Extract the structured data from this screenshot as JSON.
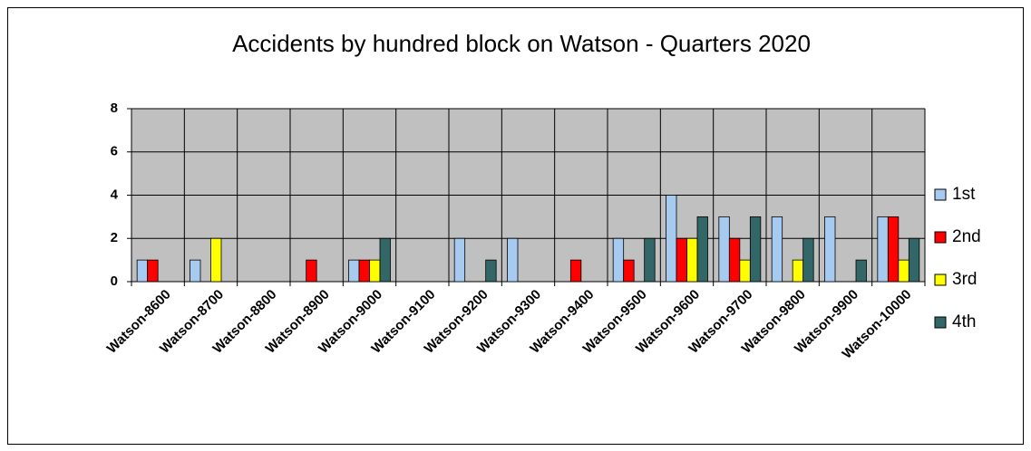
{
  "chart_data": {
    "type": "bar",
    "title": "Accidents by hundred block on Watson - Quarters 2020",
    "categories": [
      "Watson-8600",
      "Watson-8700",
      "Watson-8800",
      "Watson-8900",
      "Watson-9000",
      "Watson-9100",
      "Watson-9200",
      "Watson-9300",
      "Watson-9400",
      "Watson-9500",
      "Watson-9600",
      "Watson-9700",
      "Watson-9800",
      "Watson-9900",
      "Watson-10000"
    ],
    "series": [
      {
        "name": "1st",
        "color": "#a6caf0",
        "values": [
          1,
          1,
          0,
          0,
          1,
          0,
          2,
          2,
          0,
          2,
          4,
          3,
          3,
          3,
          3
        ]
      },
      {
        "name": "2nd",
        "color": "#ff0000",
        "values": [
          1,
          0,
          0,
          1,
          1,
          0,
          0,
          0,
          1,
          1,
          2,
          2,
          0,
          0,
          3
        ]
      },
      {
        "name": "3rd",
        "color": "#ffff00",
        "values": [
          0,
          2,
          0,
          0,
          1,
          0,
          0,
          0,
          0,
          0,
          2,
          1,
          1,
          0,
          1
        ]
      },
      {
        "name": "4th",
        "color": "#336666",
        "values": [
          0,
          0,
          0,
          0,
          2,
          0,
          1,
          0,
          0,
          2,
          3,
          3,
          2,
          1,
          2
        ]
      }
    ],
    "ylim": [
      0,
      8
    ],
    "yticks": [
      0,
      2,
      4,
      6,
      8
    ],
    "grid": true,
    "legend": "right"
  }
}
